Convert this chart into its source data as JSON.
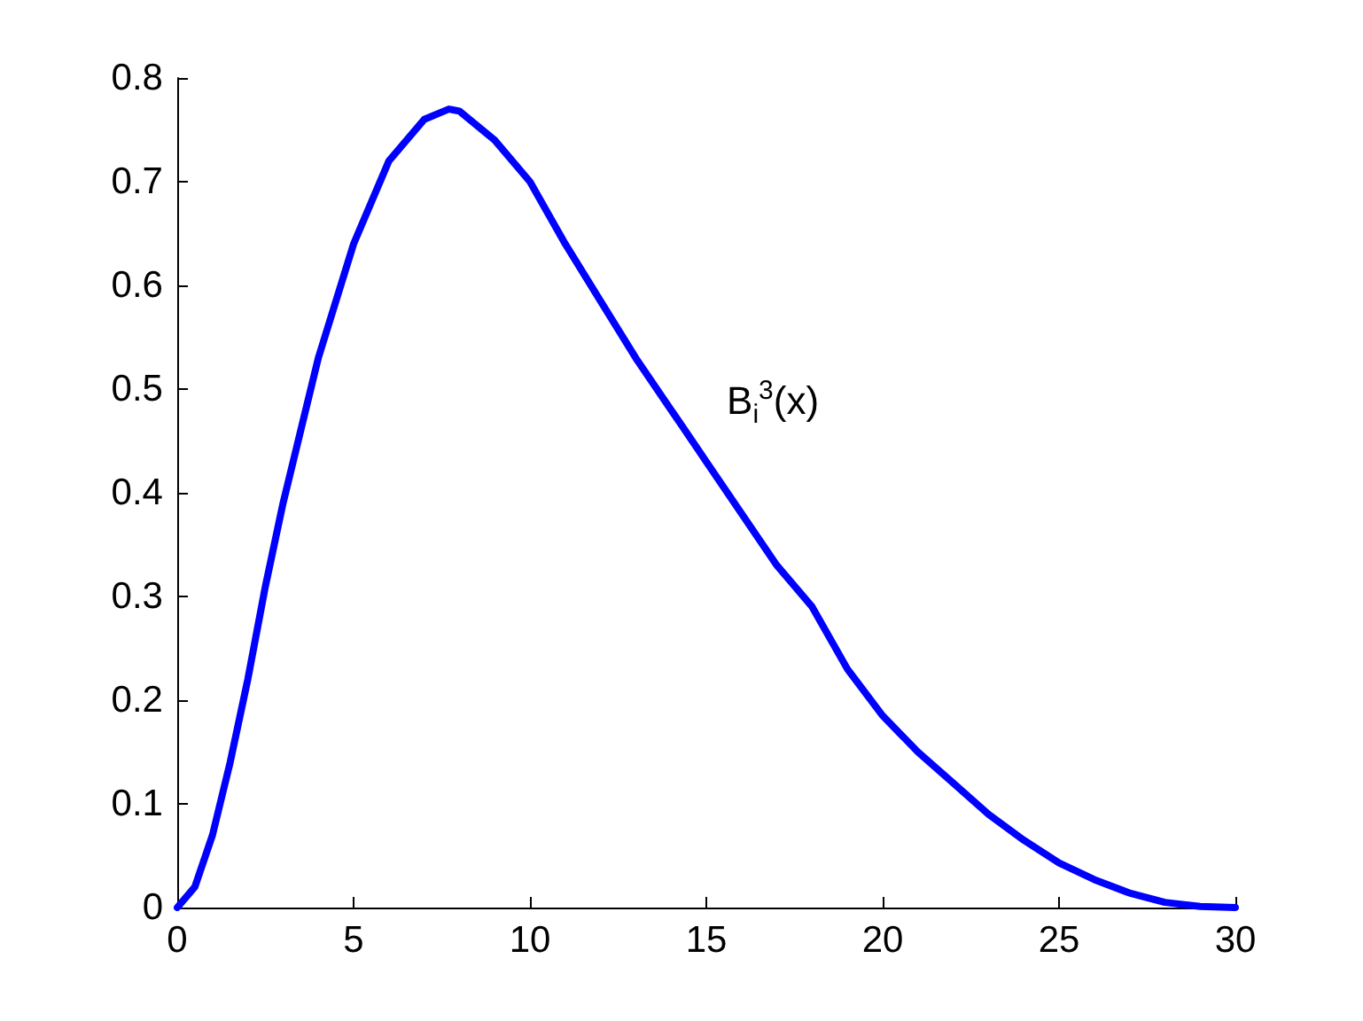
{
  "chart_data": {
    "type": "line",
    "x": [
      0,
      0.5,
      1,
      1.5,
      2,
      2.5,
      3,
      3.5,
      4,
      5,
      6,
      7,
      7.7,
      8,
      9,
      10,
      11,
      12,
      13,
      14,
      15,
      16,
      17,
      18,
      19,
      20,
      21,
      22,
      23,
      24,
      25,
      26,
      27,
      28,
      29,
      30
    ],
    "series": [
      {
        "color": "#0000ff",
        "values": [
          0,
          0.02,
          0.07,
          0.14,
          0.22,
          0.31,
          0.39,
          0.46,
          0.53,
          0.64,
          0.72,
          0.76,
          0.77,
          0.768,
          0.74,
          0.7,
          0.64,
          0.585,
          0.53,
          0.48,
          0.43,
          0.38,
          0.33,
          0.29,
          0.23,
          0.185,
          0.15,
          0.12,
          0.09,
          0.065,
          0.043,
          0.027,
          0.014,
          0.005,
          0.001,
          0
        ]
      }
    ],
    "xlim": [
      0,
      30
    ],
    "xticks": [
      0,
      5,
      10,
      15,
      20,
      25,
      30
    ],
    "ylim": [
      0,
      0.8
    ],
    "yticks": [
      0,
      0.1,
      0.2,
      0.3,
      0.4,
      0.5,
      0.6,
      0.7,
      0.8
    ],
    "annotations": [
      "B$_{i}$$^{3}$(x)"
    ],
    "marker": "none",
    "line_style": "solid"
  }
}
